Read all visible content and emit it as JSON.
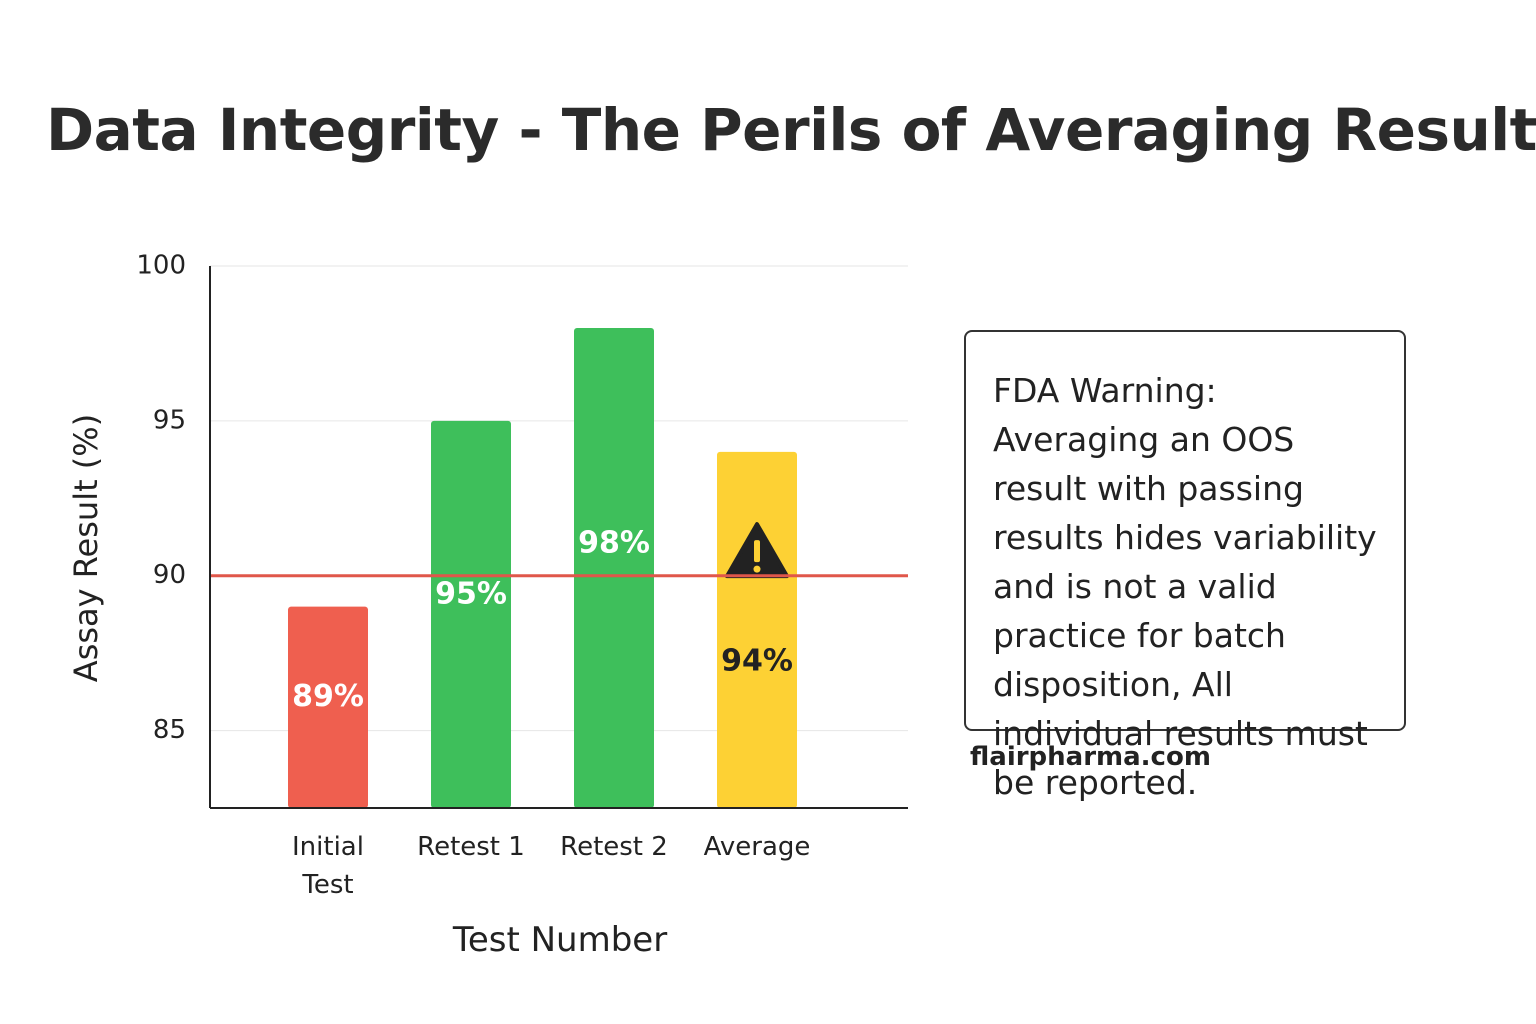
{
  "chart_data": {
    "type": "bar",
    "title": "Data Integrity - The Perils of Averaging Results",
    "x_label": "Test Number",
    "y_label": "Assay Result (%)",
    "categories": [
      "Initial Test",
      "Retest 1",
      "Retest 2",
      "Average"
    ],
    "values": [
      89,
      95,
      98,
      94
    ],
    "value_labels": [
      "89%",
      "95%",
      "98%",
      "94%"
    ],
    "colors": [
      "#ef5f4f",
      "#3ebf5b",
      "#3ebf5b",
      "#fdd134"
    ],
    "threshold": 90,
    "threshold_color": "#e0574a",
    "ylim": [
      82.5,
      100
    ],
    "yticks": [
      85,
      90,
      95,
      100
    ],
    "grid": true,
    "annotation": "FDA Warning: Averaging an OOS result with passing results hides variability and is not a valid practice for batch disposition, All individual results must be reported.",
    "footer": "flairpharma.com"
  }
}
